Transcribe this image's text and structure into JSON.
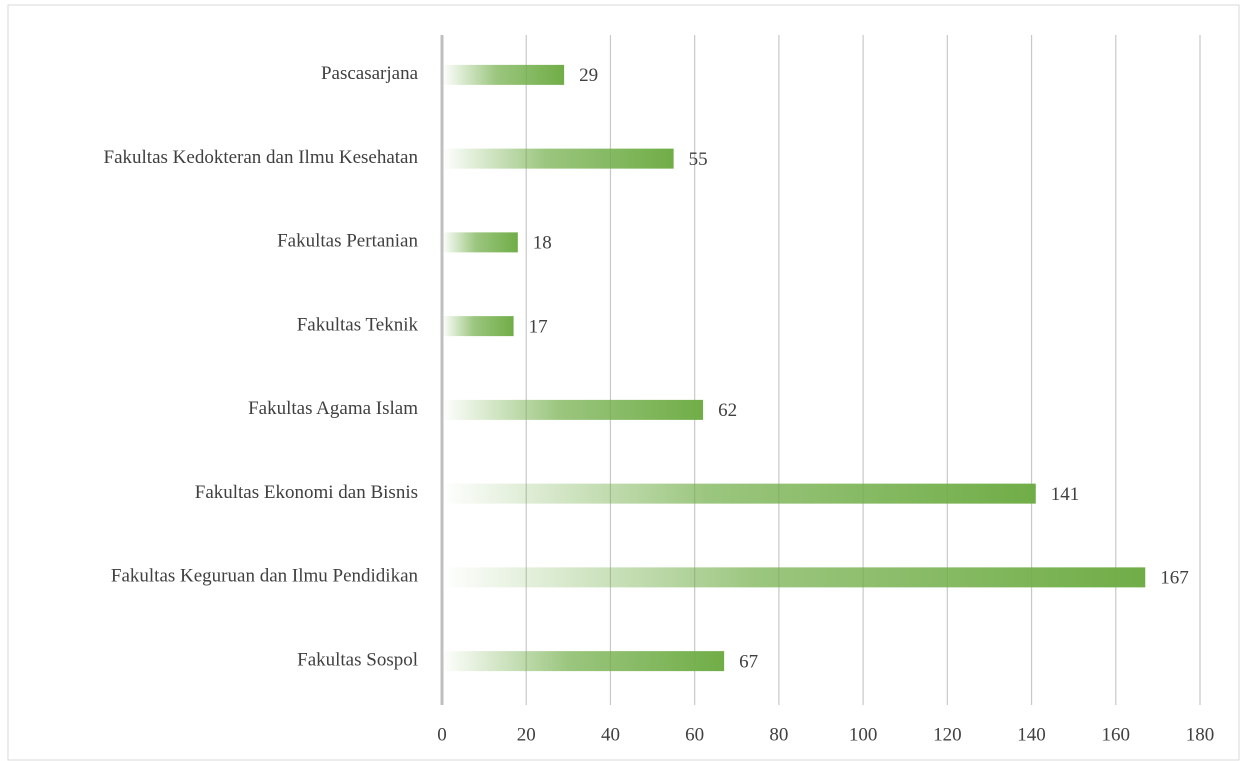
{
  "chart_data": {
    "type": "bar",
    "orientation": "horizontal",
    "categories": [
      "Pascasarjana",
      "Fakultas Kedokteran dan Ilmu Kesehatan",
      "Fakultas Pertanian",
      "Fakultas Teknik",
      "Fakultas Agama Islam",
      "Fakultas Ekonomi dan Bisnis",
      "Fakultas Keguruan dan Ilmu Pendidikan",
      "Fakultas Sospol"
    ],
    "values": [
      29,
      55,
      18,
      17,
      62,
      141,
      167,
      67
    ],
    "color": "#70ad47",
    "xlim": [
      0,
      180
    ],
    "xticks": [
      0,
      20,
      40,
      60,
      80,
      100,
      120,
      140,
      160,
      180
    ],
    "grid": true
  }
}
